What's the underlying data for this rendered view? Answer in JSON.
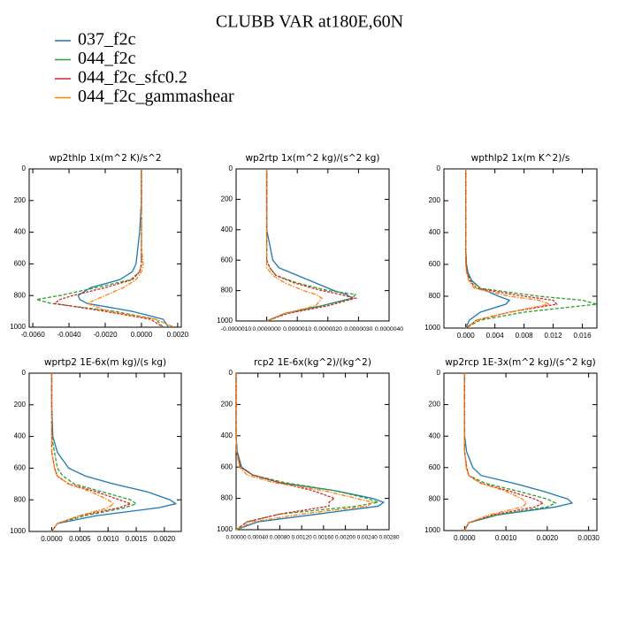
{
  "title": "CLUBB VAR at180E,60N",
  "legend": [
    {
      "name": "037_f2c",
      "color": "#1f77b4"
    },
    {
      "name": "044_f2c",
      "color": "#2ca02c"
    },
    {
      "name": "044_f2c_sfc0.2",
      "color": "#d62728"
    },
    {
      "name": "044_f2c_gammashear",
      "color": "#ff7f0e"
    }
  ],
  "levels": [
    0,
    200,
    400,
    500,
    600,
    650,
    700,
    750,
    800,
    825,
    850,
    900,
    950,
    1000
  ],
  "chart_data": [
    {
      "type": "line",
      "title": "wp2thlp  1x(m^2 K)/s^2",
      "yreverse": true,
      "xlim": [
        -0.0062,
        0.0022
      ],
      "xticks": [
        {
          "value": -0.006,
          "label": "-0.0060"
        },
        {
          "value": -0.004,
          "label": "-0.0040"
        },
        {
          "value": -0.002,
          "label": "-0.0020"
        },
        {
          "value": 0,
          "label": "0.0000"
        },
        {
          "value": 0.002,
          "label": "0.0020"
        }
      ],
      "ylim": [
        0,
        1000
      ],
      "yticks": [
        0,
        200,
        400,
        600,
        800,
        1000
      ],
      "values": [
        [
          0,
          0,
          -0.0001,
          -0.0002,
          -0.0003,
          -0.0005,
          -0.0012,
          -0.0028,
          -0.0035,
          -0.0034,
          -0.003,
          -0.0005,
          0.0012,
          0.0015
        ],
        [
          0,
          0,
          0,
          0,
          0,
          -0.0001,
          -0.0006,
          -0.0025,
          -0.0045,
          -0.0058,
          -0.005,
          -0.0015,
          0.0008,
          0.0012
        ],
        [
          0,
          0,
          0,
          0,
          0,
          -0.0001,
          -0.0005,
          -0.002,
          -0.0038,
          -0.0045,
          -0.0048,
          -0.002,
          0.0005,
          0.0012
        ],
        [
          0,
          0,
          0,
          0,
          0.0001,
          0,
          -0.0003,
          -0.001,
          -0.002,
          -0.0025,
          -0.003,
          -0.0018,
          0.0008,
          0.0018
        ]
      ]
    },
    {
      "type": "line",
      "title": "wp2rtp  1x(m^2 kg)/(s^2 kg)",
      "yreverse": true,
      "xlim": [
        -1e-06,
        4e-06
      ],
      "xticks": [
        {
          "value": -1e-06,
          "label": "-0.0000010"
        },
        {
          "value": 0,
          "label": "0.0000000"
        },
        {
          "value": 1e-06,
          "label": "0.0000010"
        },
        {
          "value": 2e-06,
          "label": "0.0000020"
        },
        {
          "value": 3e-06,
          "label": "0.0000030"
        },
        {
          "value": 4e-06,
          "label": "0.0000040"
        }
      ],
      "ylim": [
        0,
        1000
      ],
      "yticks": [
        0,
        200,
        400,
        600,
        800,
        1000
      ],
      "values": [
        [
          0,
          0,
          0,
          1e-07,
          2e-07,
          4e-07,
          1e-06,
          1.6e-06,
          2.2e-06,
          2.6e-06,
          2.8e-06,
          1.8e-06,
          6e-07,
          0
        ],
        [
          0,
          0,
          0,
          0,
          0,
          1e-07,
          3e-07,
          1e-06,
          2e-06,
          2.9e-06,
          2.8e-06,
          1.8e-06,
          6e-07,
          0
        ],
        [
          0,
          0,
          0,
          0,
          0,
          1e-07,
          3e-07,
          9e-07,
          1.8e-06,
          2.4e-06,
          2.9e-06,
          2e-06,
          7e-07,
          0
        ],
        [
          0,
          0,
          0,
          0,
          0,
          0,
          2e-07,
          6e-07,
          1.2e-06,
          1.6e-06,
          1.8e-06,
          1.6e-06,
          6e-07,
          0
        ]
      ]
    },
    {
      "type": "line",
      "title": "wpthlp2  1x(m K^2)/s",
      "yreverse": true,
      "xlim": [
        -0.003,
        0.018
      ],
      "xticks": [
        {
          "value": 0,
          "label": "0.000"
        },
        {
          "value": 0.004,
          "label": "0.004"
        },
        {
          "value": 0.008,
          "label": "0.008"
        },
        {
          "value": 0.012,
          "label": "0.012"
        },
        {
          "value": 0.016,
          "label": "0.016"
        }
      ],
      "ylim": [
        0,
        1000
      ],
      "yticks": [
        0,
        200,
        400,
        600,
        800,
        1000
      ],
      "values": [
        [
          0,
          0,
          0,
          0,
          0.0001,
          0.0003,
          0.0008,
          0.002,
          0.0045,
          0.006,
          0.0055,
          0.002,
          0.0005,
          0
        ],
        [
          0,
          0,
          0,
          0,
          0.0001,
          0.0002,
          0.0006,
          0.002,
          0.01,
          0.016,
          0.018,
          0.008,
          0.002,
          0
        ],
        [
          0,
          0,
          0,
          0,
          0,
          0.0002,
          0.0005,
          0.0015,
          0.008,
          0.012,
          0.0125,
          0.006,
          0.0015,
          0
        ],
        [
          0,
          0,
          0,
          0,
          0,
          0.0001,
          0.0004,
          0.0012,
          0.006,
          0.01,
          0.0115,
          0.006,
          0.0015,
          0
        ]
      ]
    },
    {
      "type": "line",
      "title": "wprtp2  1E-6x(m kg)/(s kg)",
      "yreverse": true,
      "xlim": [
        -0.0004,
        0.0023
      ],
      "xticks": [
        {
          "value": 0,
          "label": "0.0000"
        },
        {
          "value": 0.0005,
          "label": "0.0005"
        },
        {
          "value": 0.001,
          "label": "0.0010"
        },
        {
          "value": 0.0015,
          "label": "0.0015"
        },
        {
          "value": 0.002,
          "label": "0.0020"
        }
      ],
      "ylim": [
        0,
        1000
      ],
      "yticks": [
        0,
        200,
        400,
        600,
        800,
        1000
      ],
      "values": [
        [
          0,
          0,
          2e-05,
          0.0001,
          0.0003,
          0.0006,
          0.0011,
          0.0017,
          0.0021,
          0.0022,
          0.0019,
          0.0008,
          0.0001,
          0
        ],
        [
          0,
          0,
          0,
          5e-05,
          0.0001,
          0.0002,
          0.0004,
          0.0009,
          0.0014,
          0.0015,
          0.0013,
          0.0006,
          0.0001,
          0
        ],
        [
          0,
          0,
          0,
          0,
          5e-05,
          0.0001,
          0.0003,
          0.0008,
          0.0012,
          0.0014,
          0.0012,
          0.0005,
          0.0001,
          0
        ],
        [
          0,
          0,
          0,
          0,
          5e-05,
          0.0001,
          0.0003,
          0.0007,
          0.001,
          0.0011,
          0.001,
          0.0005,
          0.0001,
          0
        ]
      ]
    },
    {
      "type": "line",
      "title": "rcp2  1E-6x(kg^2)/(kg^2)",
      "yreverse": true,
      "xlim": [
        0,
        0.0028
      ],
      "xticks": [
        {
          "value": 0,
          "label": "0.00000"
        },
        {
          "value": 0.0004,
          "label": "0.00040"
        },
        {
          "value": 0.0008,
          "label": "0.00080"
        },
        {
          "value": 0.0012,
          "label": "0.00120"
        },
        {
          "value": 0.0016,
          "label": "0.00160"
        },
        {
          "value": 0.002,
          "label": "0.00200"
        },
        {
          "value": 0.0024,
          "label": "0.00240"
        },
        {
          "value": 0.0028,
          "label": "0.00280"
        }
      ],
      "ylim": [
        0,
        1000
      ],
      "yticks": [
        0,
        200,
        400,
        600,
        800,
        1000
      ],
      "values": [
        [
          0,
          0,
          0,
          2e-05,
          0.0001,
          0.0003,
          0.0008,
          0.0018,
          0.0025,
          0.0027,
          0.0026,
          0.0015,
          0.0004,
          0
        ],
        [
          0,
          0,
          0,
          1e-05,
          8e-05,
          0.0003,
          0.0009,
          0.0018,
          0.0024,
          0.0026,
          0.0022,
          0.0008,
          0.0002,
          0
        ],
        [
          0,
          0,
          0,
          1e-05,
          8e-05,
          0.0003,
          0.0008,
          0.0014,
          0.0018,
          0.0017,
          0.0017,
          0.0008,
          0.0002,
          0
        ],
        [
          0,
          0,
          0,
          1e-05,
          6e-05,
          0.0002,
          0.0007,
          0.0016,
          0.0022,
          0.0025,
          0.0024,
          0.0012,
          0.0003,
          0
        ]
      ]
    },
    {
      "type": "line",
      "title": "wp2rcp  1E-3x(m^2 kg)/(s^2 kg)",
      "yreverse": true,
      "xlim": [
        -0.0005,
        0.0032
      ],
      "xticks": [
        {
          "value": 0,
          "label": "0.0000"
        },
        {
          "value": 0.001,
          "label": "0.0010"
        },
        {
          "value": 0.002,
          "label": "0.0020"
        },
        {
          "value": 0.003,
          "label": "0.0030"
        }
      ],
      "ylim": [
        0,
        1000
      ],
      "yticks": [
        0,
        200,
        400,
        600,
        800,
        1000
      ],
      "values": [
        [
          0,
          0,
          0,
          5e-05,
          0.0002,
          0.0004,
          0.0012,
          0.0019,
          0.0025,
          0.0026,
          0.0022,
          0.0008,
          0.0001,
          0
        ],
        [
          0,
          0,
          0,
          0,
          5e-05,
          0.0001,
          0.0005,
          0.0013,
          0.002,
          0.0022,
          0.002,
          0.0008,
          0.0001,
          0
        ],
        [
          0,
          0,
          0,
          0,
          5e-05,
          0.0001,
          0.0004,
          0.0011,
          0.0017,
          0.0019,
          0.0017,
          0.0007,
          0.0001,
          0
        ],
        [
          0,
          0,
          0,
          0,
          4e-05,
          0.0001,
          0.0004,
          0.001,
          0.0014,
          0.0015,
          0.0014,
          0.0006,
          0.0001,
          0
        ]
      ]
    }
  ]
}
